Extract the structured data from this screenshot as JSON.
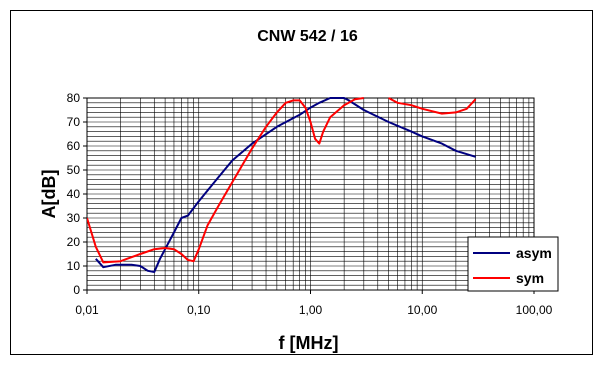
{
  "chart_data": {
    "type": "line",
    "title": "CNW 542 / 16",
    "xlabel": "f [MHz]",
    "ylabel": "A[dB]",
    "x_scale": "log",
    "xlim": [
      0.01,
      100
    ],
    "ylim": [
      0,
      80
    ],
    "x_ticks": [
      0.01,
      0.1,
      1,
      10,
      100
    ],
    "x_tick_labels": [
      "0,01",
      "0,10",
      "1,00",
      "10,00",
      "100,00"
    ],
    "y_ticks": [
      0,
      10,
      20,
      30,
      40,
      50,
      60,
      70,
      80
    ],
    "y_tick_labels": [
      "0",
      "10",
      "20",
      "30",
      "40",
      "50",
      "60",
      "70",
      "80"
    ],
    "grid": true,
    "legend_position": "bottom-right",
    "series": [
      {
        "name": "asym",
        "color": "#000080",
        "x": [
          0.012,
          0.014,
          0.018,
          0.025,
          0.03,
          0.035,
          0.04,
          0.045,
          0.05,
          0.06,
          0.07,
          0.08,
          0.1,
          0.15,
          0.2,
          0.3,
          0.5,
          0.8,
          1.0,
          1.2,
          1.5,
          2.0,
          2.2,
          3.0,
          5.0,
          8.0,
          10.0,
          15.0,
          20.0,
          30.0
        ],
        "y": [
          13,
          9.5,
          10.5,
          10.5,
          10,
          8,
          7.5,
          13,
          17,
          24,
          30,
          31,
          37,
          47,
          54,
          61,
          68,
          73,
          76,
          78,
          80,
          80,
          79,
          75,
          70,
          66,
          64,
          61,
          58,
          55.5
        ]
      },
      {
        "name": "sym",
        "color": "#ff0000",
        "x": [
          0.01,
          0.012,
          0.014,
          0.02,
          0.03,
          0.04,
          0.05,
          0.06,
          0.07,
          0.08,
          0.09,
          0.1,
          0.12,
          0.15,
          0.2,
          0.3,
          0.4,
          0.5,
          0.6,
          0.7,
          0.8,
          0.9,
          1.0,
          1.1,
          1.2,
          1.3,
          1.5,
          2.0,
          2.5,
          3.0
        ],
        "y": [
          30,
          18,
          11.5,
          12,
          15,
          17,
          17.5,
          17,
          15,
          12.5,
          12,
          17,
          27,
          35,
          45,
          59,
          68,
          74,
          78,
          79,
          79,
          76,
          70,
          63,
          61,
          66,
          72,
          77,
          79.5,
          80
        ]
      },
      {
        "name": "sym",
        "color": "#ff0000",
        "x": [
          5.0,
          6.0,
          8.0,
          10.0,
          15.0,
          20.0,
          25.0,
          30.0
        ],
        "y": [
          80,
          78,
          77,
          75.5,
          73.5,
          74,
          75.5,
          79.5
        ]
      }
    ]
  }
}
